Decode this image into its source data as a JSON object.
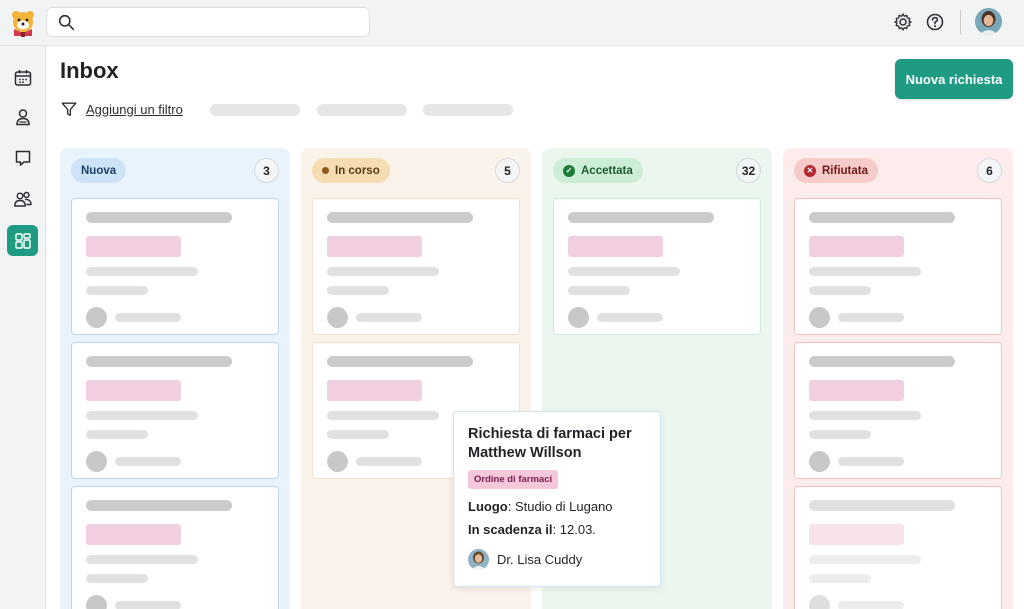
{
  "app": {
    "logo_icon": "bear-mascot-icon"
  },
  "search": {
    "placeholder": ""
  },
  "topbar_icons": [
    "gear-icon",
    "help-icon",
    "user-avatar"
  ],
  "sidebar": {
    "items": [
      {
        "icon": "calendar-icon",
        "active": false
      },
      {
        "icon": "patient-icon",
        "active": false
      },
      {
        "icon": "chat-icon",
        "active": false
      },
      {
        "icon": "team-icon",
        "active": false
      },
      {
        "icon": "board-icon",
        "active": true
      }
    ]
  },
  "page": {
    "title": "Inbox",
    "new_button": "Nuova richiesta",
    "filter_label": "Aggiungi un filtro"
  },
  "columns": [
    {
      "label": "Nuova",
      "count": "3",
      "color": "#e9f3fc",
      "cards": 3
    },
    {
      "label": "In corso",
      "count": "5",
      "color": "#faf3eb",
      "cards": 2
    },
    {
      "label": "Accettata",
      "count": "32",
      "color": "#eaf6ee",
      "cards": 1
    },
    {
      "label": "Rifiutata",
      "count": "6",
      "color": "#fdecec",
      "cards": 3
    }
  ],
  "detail": {
    "title": "Richiesta di farmaci per Matthew Willson",
    "tag": "Ordine di farmaci",
    "place_label": "Luogo",
    "place_value": ": Studio di Lugano",
    "due_label": "In scadenza il",
    "due_value": ": 12.03.",
    "doctor": "Dr. Lisa Cuddy"
  },
  "colors": {
    "accent": "#1f9b84",
    "tag_pink": "#f4c7da"
  }
}
